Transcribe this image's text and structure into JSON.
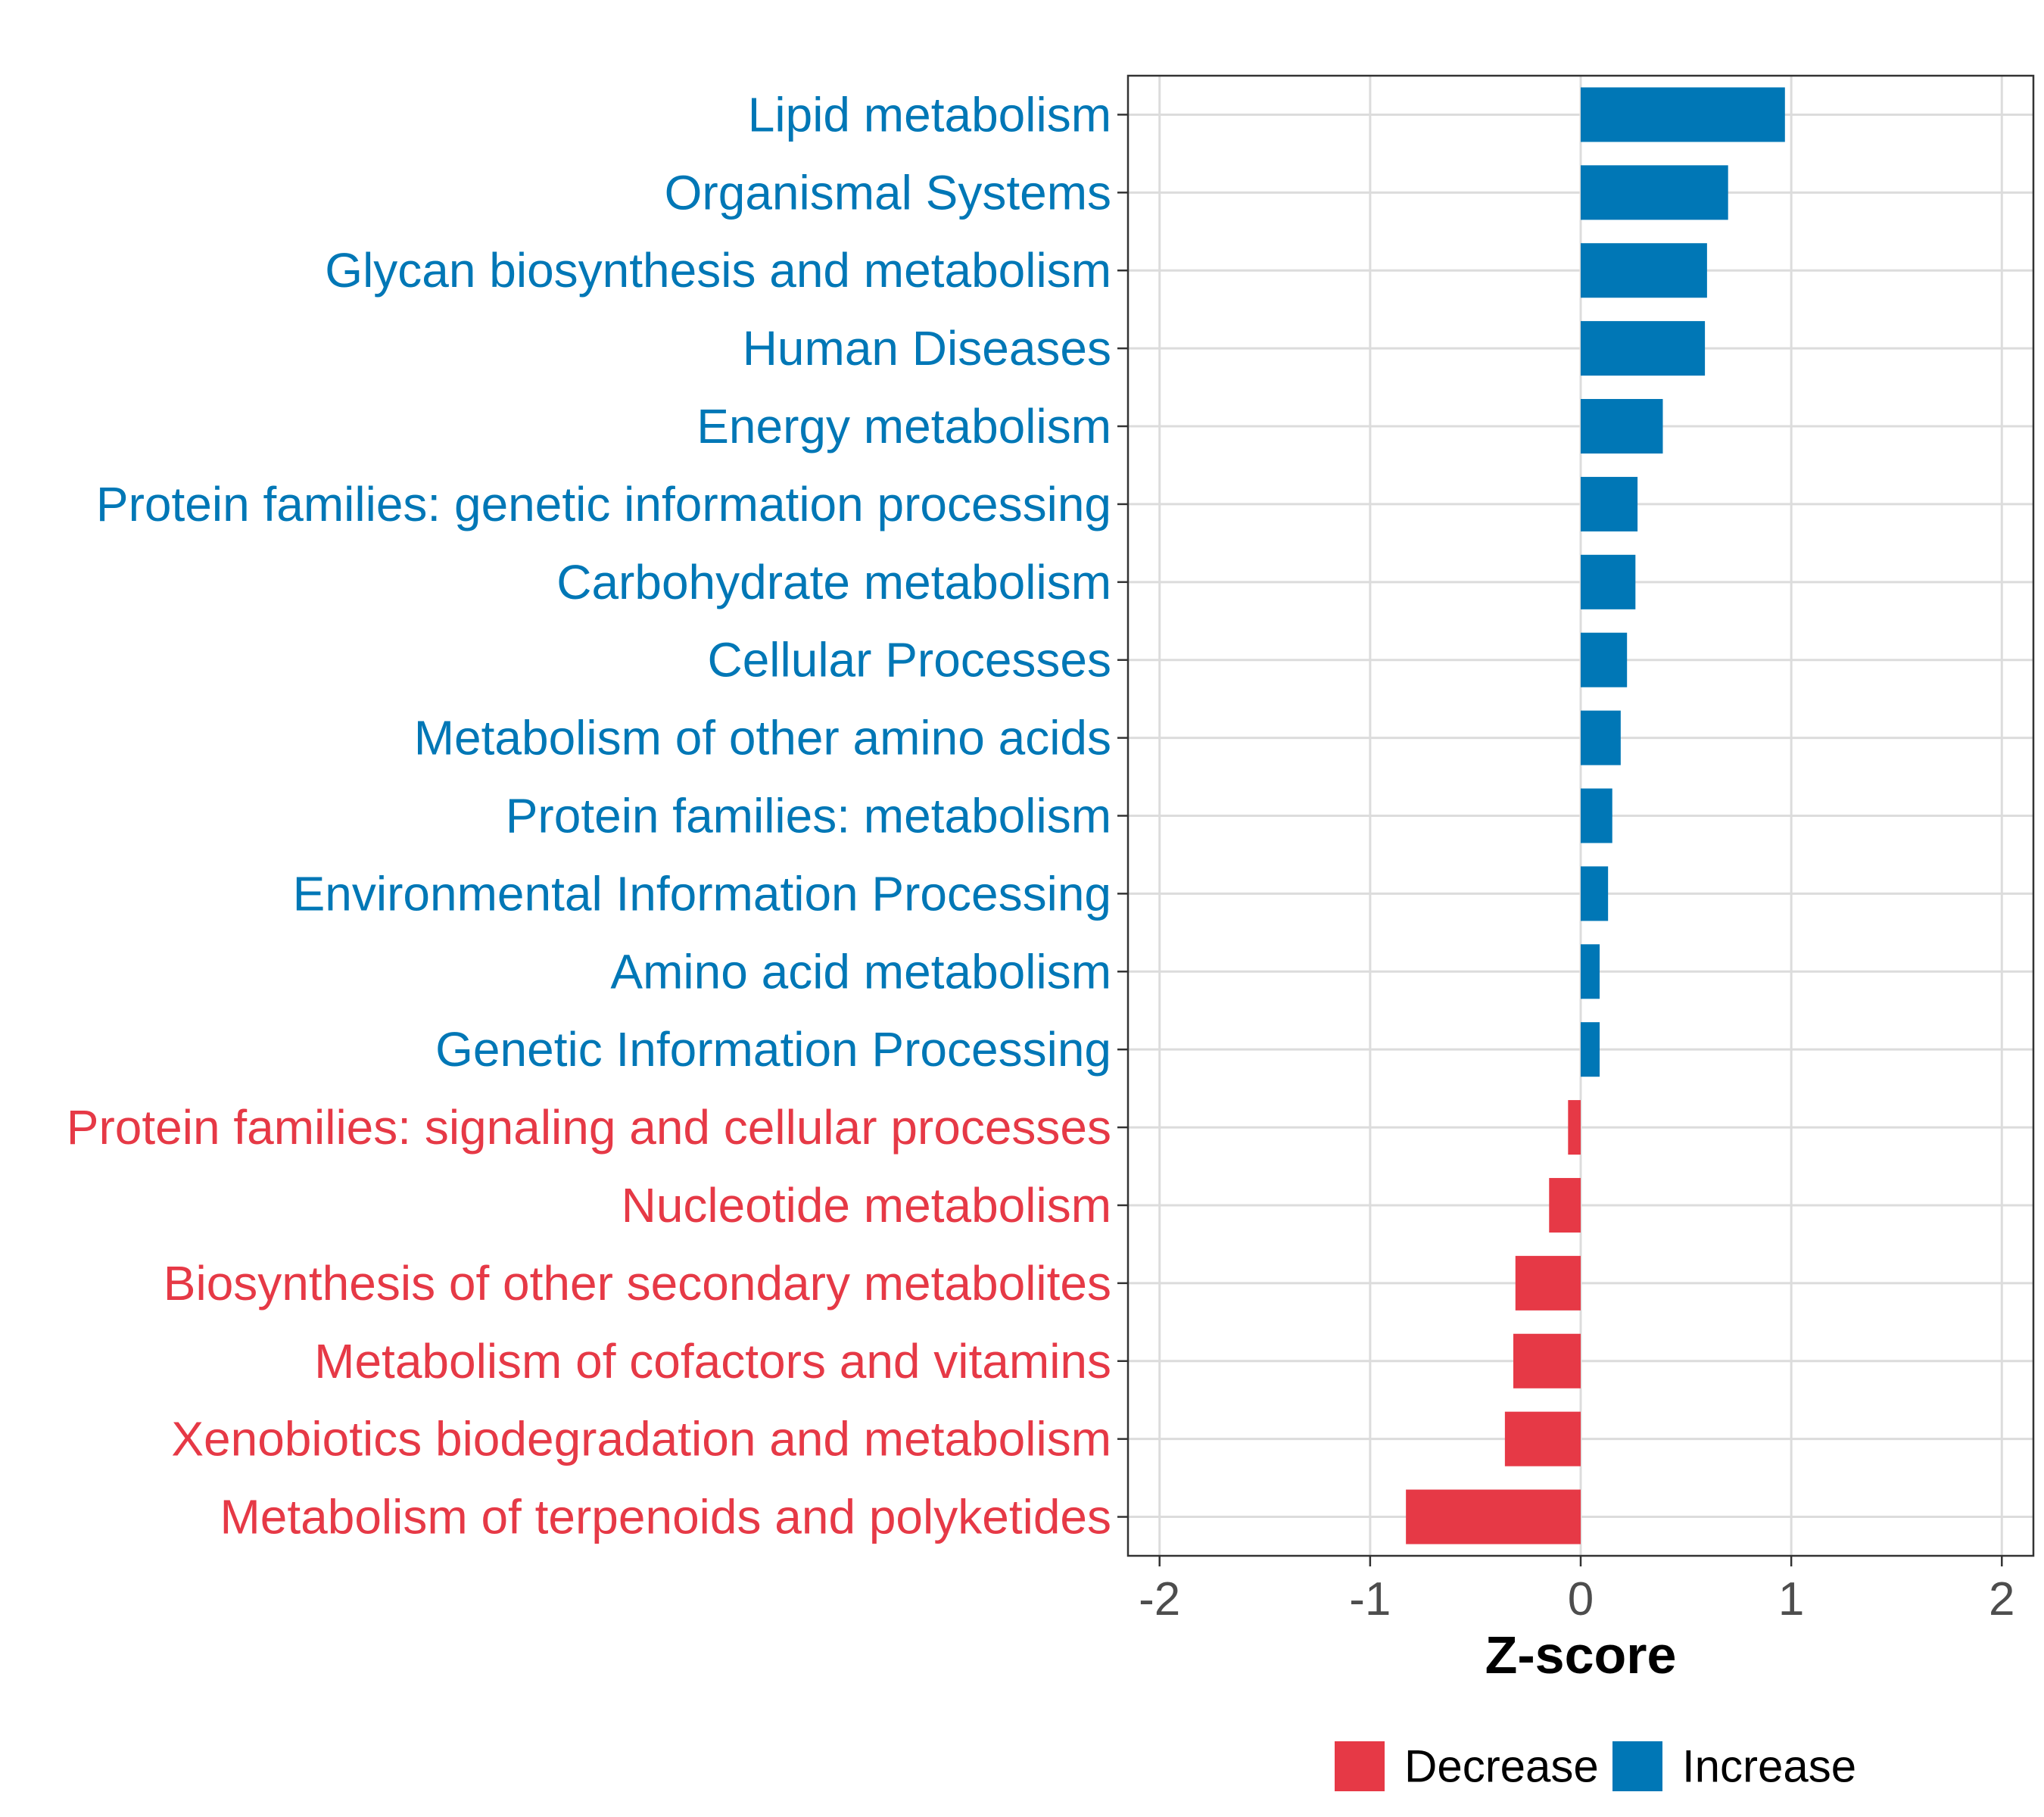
{
  "chart_data": {
    "type": "bar",
    "orientation": "horizontal",
    "xlabel": "Z-score",
    "xlim": [
      -2.15,
      2.15
    ],
    "xticks": [
      -2,
      -1,
      0,
      1,
      2
    ],
    "xtick_labels": [
      "-2",
      "-1",
      "0",
      "1",
      "2"
    ],
    "grid": true,
    "legend_position": "bottom",
    "colors": {
      "Decrease": "#E63946",
      "Increase": "#0077B6"
    },
    "legend": [
      {
        "label": "Decrease",
        "color": "#E63946"
      },
      {
        "label": "Increase",
        "color": "#0077B6"
      }
    ],
    "categories": [
      "Lipid metabolism",
      "Organismal Systems",
      "Glycan biosynthesis and metabolism",
      "Human Diseases",
      "Energy metabolism",
      "Protein families: genetic information processing",
      "Carbohydrate metabolism",
      "Cellular Processes",
      "Metabolism of other amino acids",
      "Protein families: metabolism",
      "Environmental Information Processing",
      "Amino acid metabolism",
      "Genetic Information Processing",
      "Protein families: signaling and cellular processes",
      "Nucleotide metabolism",
      "Biosynthesis of other secondary metabolites",
      "Metabolism of cofactors and vitamins",
      "Xenobiotics biodegradation and metabolism",
      "Metabolism of terpenoids and polyketides"
    ],
    "values": [
      0.97,
      0.7,
      0.6,
      0.59,
      0.39,
      0.27,
      0.26,
      0.22,
      0.19,
      0.15,
      0.13,
      0.09,
      0.09,
      -0.06,
      -0.15,
      -0.31,
      -0.32,
      -0.36,
      -0.83
    ],
    "groups": [
      "Increase",
      "Increase",
      "Increase",
      "Increase",
      "Increase",
      "Increase",
      "Increase",
      "Increase",
      "Increase",
      "Increase",
      "Increase",
      "Increase",
      "Increase",
      "Decrease",
      "Decrease",
      "Decrease",
      "Decrease",
      "Decrease",
      "Decrease"
    ]
  }
}
